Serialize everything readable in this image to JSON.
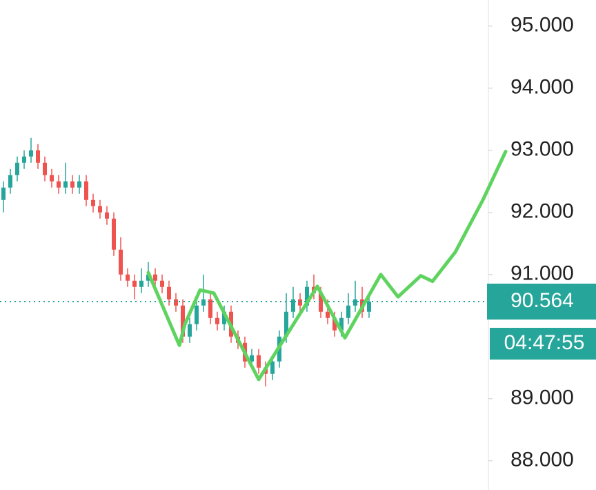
{
  "chart_data": {
    "type": "candlestick",
    "ylim": [
      87.53,
      95.42
    ],
    "yticks": [
      {
        "value": 88,
        "label": "88.000"
      },
      {
        "value": 89,
        "label": "89.000"
      },
      {
        "value": 91,
        "label": "91.000"
      },
      {
        "value": 92,
        "label": "92.000"
      },
      {
        "value": 93,
        "label": "93.000"
      },
      {
        "value": 94,
        "label": "94.000"
      },
      {
        "value": 95,
        "label": "95.000"
      }
    ],
    "up_color": "#26a69a",
    "down_color": "#ef5350",
    "open": [
      92.2,
      92.4,
      92.6,
      92.8,
      92.9,
      93.0,
      92.8,
      92.6,
      92.5,
      92.4,
      92.5,
      92.4,
      92.5,
      92.2,
      92.1,
      92.0,
      91.9,
      91.4,
      91.0,
      90.9,
      90.8,
      90.9,
      91.0,
      90.9,
      90.8,
      90.6,
      90.5,
      90.0,
      90.2,
      90.5,
      90.6,
      90.3,
      90.2,
      90.4,
      90.0,
      89.9,
      89.6,
      89.7,
      89.5,
      89.4,
      89.6,
      90.0,
      90.4,
      90.6,
      90.5,
      90.8,
      90.7,
      90.4,
      90.3,
      90.1,
      90.3,
      90.5,
      90.6,
      90.4
    ],
    "high": [
      92.5,
      92.7,
      92.9,
      93.0,
      93.2,
      93.1,
      92.9,
      92.7,
      92.6,
      92.8,
      92.6,
      92.6,
      92.6,
      92.3,
      92.2,
      92.1,
      92.0,
      91.6,
      91.1,
      91.0,
      91.1,
      91.2,
      91.1,
      91.0,
      90.9,
      90.7,
      90.6,
      90.3,
      90.6,
      91.0,
      90.7,
      90.4,
      90.5,
      90.5,
      90.1,
      90.0,
      89.8,
      89.8,
      89.6,
      89.7,
      90.1,
      90.7,
      90.8,
      90.7,
      90.9,
      91.0,
      90.8,
      90.6,
      90.4,
      90.4,
      90.7,
      90.9,
      90.8,
      90.7
    ],
    "low": [
      92.0,
      92.3,
      92.5,
      92.7,
      92.8,
      92.7,
      92.5,
      92.4,
      92.3,
      92.3,
      92.3,
      92.3,
      92.1,
      92.0,
      91.9,
      91.8,
      91.3,
      90.9,
      90.8,
      90.6,
      90.7,
      90.8,
      90.8,
      90.7,
      90.5,
      90.4,
      89.9,
      89.9,
      90.1,
      90.4,
      90.2,
      90.1,
      90.1,
      89.9,
      89.8,
      89.5,
      89.5,
      89.4,
      89.2,
      89.3,
      89.5,
      89.9,
      90.3,
      90.4,
      90.4,
      90.6,
      90.3,
      90.2,
      90.0,
      90.0,
      90.2,
      90.4,
      90.3,
      90.3
    ],
    "close": [
      92.4,
      92.6,
      92.8,
      92.9,
      93.0,
      92.8,
      92.6,
      92.5,
      92.4,
      92.5,
      92.4,
      92.5,
      92.2,
      92.1,
      92.0,
      91.9,
      91.4,
      91.0,
      90.9,
      90.8,
      90.9,
      91.0,
      90.9,
      90.8,
      90.6,
      90.5,
      90.0,
      90.2,
      90.5,
      90.6,
      90.3,
      90.2,
      90.4,
      90.0,
      89.9,
      89.6,
      89.7,
      89.5,
      89.4,
      89.6,
      90.0,
      90.4,
      90.6,
      90.5,
      90.8,
      90.7,
      90.4,
      90.3,
      90.1,
      90.3,
      90.5,
      90.6,
      90.4,
      90.564
    ],
    "last_price": {
      "value": 90.564,
      "label": "90.564"
    },
    "countdown": "04:47:55",
    "drawing": {
      "color": "#5fd35f",
      "x": [
        21,
        25.5,
        26.3,
        28.5,
        30.5,
        37,
        45.5,
        49.5,
        54.7,
        57.2,
        60.5,
        62.2,
        65.5,
        69.5,
        72.8
      ],
      "y": [
        91.03,
        89.86,
        90.2,
        90.75,
        90.7,
        89.31,
        90.81,
        89.98,
        91.0,
        90.64,
        90.98,
        90.89,
        91.36,
        92.2,
        92.98
      ]
    }
  }
}
